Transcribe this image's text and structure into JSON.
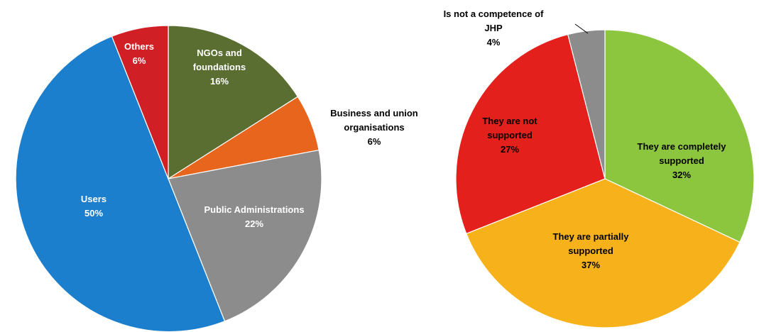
{
  "chart_data": [
    {
      "type": "pie",
      "title": "",
      "slices": [
        {
          "name_lines": [
            "NGOs and",
            "foundations"
          ],
          "pct_label": "16%",
          "value": 16,
          "color": "#5a6e31",
          "text_color": "#ffffff"
        },
        {
          "name_lines": [
            "Business and union",
            "organisations"
          ],
          "pct_label": "6%",
          "value": 6,
          "color": "#e8651e",
          "text_color": "#000000"
        },
        {
          "name_lines": [
            "Public Administrations"
          ],
          "pct_label": "22%",
          "value": 22,
          "color": "#8c8c8c",
          "text_color": "#ffffff"
        },
        {
          "name_lines": [
            "Users"
          ],
          "pct_label": "50%",
          "value": 50,
          "color": "#1c7fcd",
          "text_color": "#ffffff"
        },
        {
          "name_lines": [
            "Others"
          ],
          "pct_label": "6%",
          "value": 6,
          "color": "#d11f26",
          "text_color": "#ffffff"
        }
      ]
    },
    {
      "type": "pie",
      "title": "",
      "slices": [
        {
          "name_lines": [
            "They are completely",
            "supported"
          ],
          "pct_label": "32%",
          "value": 32,
          "color": "#8cc63f",
          "text_color": "#000000"
        },
        {
          "name_lines": [
            "They are partially",
            "supported"
          ],
          "pct_label": "37%",
          "value": 37,
          "color": "#f7b21b",
          "text_color": "#000000"
        },
        {
          "name_lines": [
            "They are not",
            "supported"
          ],
          "pct_label": "27%",
          "value": 27,
          "color": "#e3201c",
          "text_color": "#000000"
        },
        {
          "name_lines": [
            "Is not a competence of",
            "JHP"
          ],
          "pct_label": "4%",
          "value": 4,
          "color": "#8c8c8c",
          "text_color": "#000000"
        }
      ]
    }
  ]
}
